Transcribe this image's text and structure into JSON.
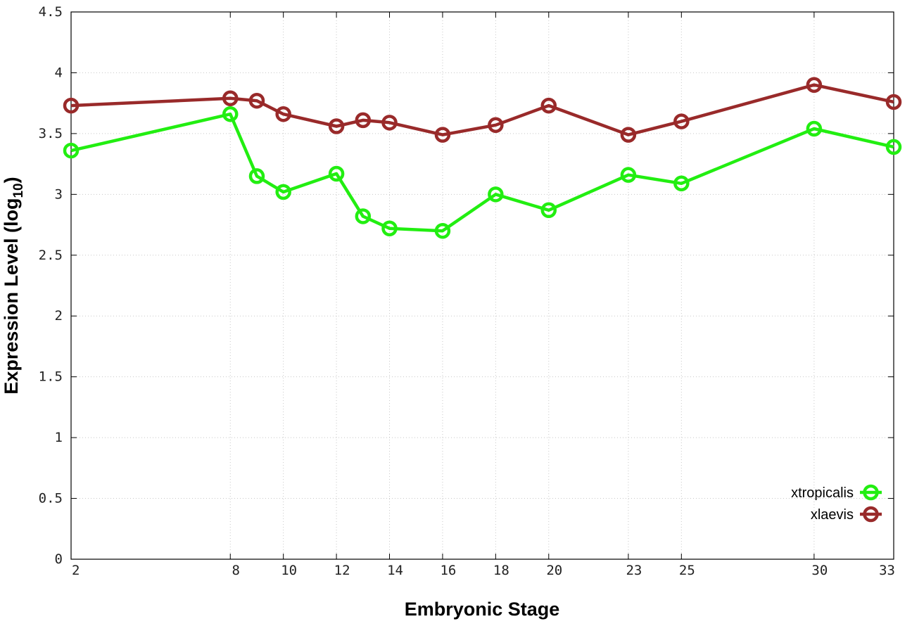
{
  "chart_data": {
    "type": "line",
    "title": "",
    "xlabel": "Embryonic Stage",
    "ylabel": "Expression Level (log",
    "ylabel_subscript": "10",
    "ylabel_suffix": ")",
    "x_ticks": [
      2,
      8,
      10,
      12,
      14,
      16,
      18,
      20,
      23,
      25,
      30,
      33
    ],
    "y_ticks": [
      "0",
      "0.5",
      "1",
      "1.5",
      "2",
      "2.5",
      "3",
      "3.5",
      "4",
      "4.5"
    ],
    "xlim": [
      2,
      33
    ],
    "ylim": [
      0,
      4.5
    ],
    "grid": true,
    "legend_position": "bottom-right",
    "x": [
      2,
      8,
      9,
      10,
      12,
      13,
      14,
      16,
      18,
      20,
      23,
      25,
      30,
      33
    ],
    "series": [
      {
        "name": "xtropicalis",
        "color": "#22ee11",
        "values": [
          3.36,
          3.66,
          3.15,
          3.02,
          3.17,
          2.82,
          2.72,
          2.7,
          3.0,
          2.87,
          3.16,
          3.09,
          3.54,
          3.39
        ]
      },
      {
        "name": "xlaevis",
        "color": "#992a2a",
        "values": [
          3.73,
          3.79,
          3.77,
          3.66,
          3.56,
          3.61,
          3.59,
          3.49,
          3.57,
          3.73,
          3.49,
          3.6,
          3.9,
          3.76
        ]
      }
    ]
  }
}
